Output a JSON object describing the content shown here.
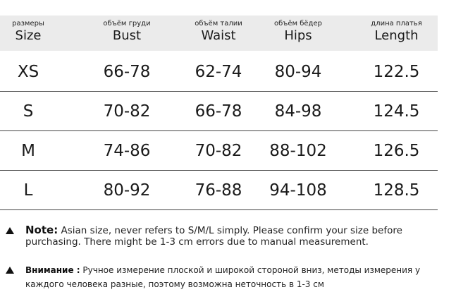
{
  "table": {
    "headers": [
      {
        "ru": "размеры",
        "en": "Size"
      },
      {
        "ru": "объём груди",
        "en": "Bust"
      },
      {
        "ru": "объём талии",
        "en": "Waist"
      },
      {
        "ru": "объём бёдер",
        "en": "Hips"
      },
      {
        "ru": "длина платья",
        "en": "Length"
      }
    ],
    "rows": [
      [
        "XS",
        "66-78",
        "62-74",
        "80-94",
        "122.5"
      ],
      [
        "S",
        "70-82",
        "66-78",
        "84-98",
        "124.5"
      ],
      [
        "M",
        "74-86",
        "70-82",
        "88-102",
        "126.5"
      ],
      [
        "L",
        "80-92",
        "76-88",
        "94-108",
        "128.5"
      ]
    ]
  },
  "notes": {
    "en_label": "Note:",
    "en_text": "Asian size, never refers to S/M/L simply. Please confirm your size before purchasing. There might be 1-3 cm errors due to manual measurement.",
    "ru_label": "Внимание :",
    "ru_text": "Ручное измерение плоской и широкой стороной вниз, методы измерения у каждого человека разные, поэтому возможна неточность в 1-3 см"
  }
}
